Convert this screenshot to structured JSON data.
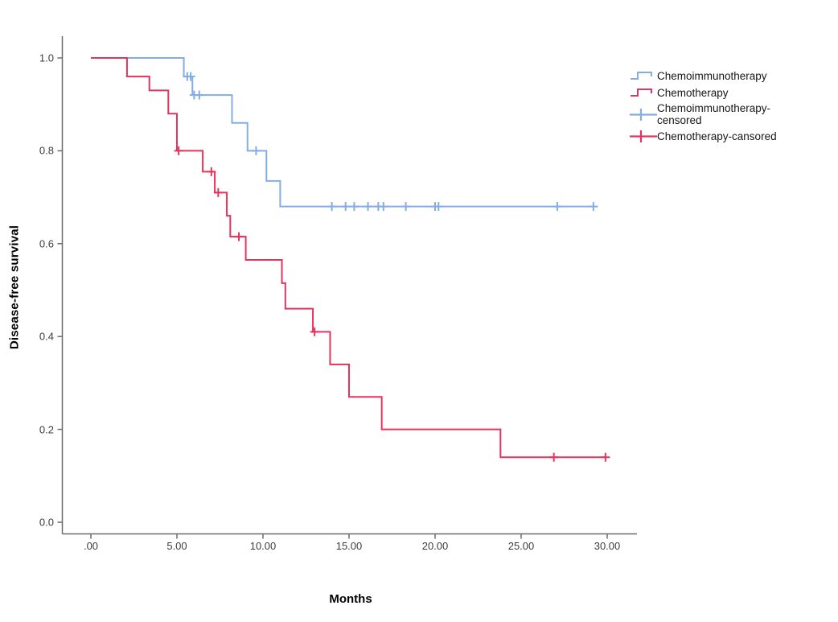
{
  "figure": {
    "background": "#ffffff",
    "ylabel": "Disease-free survival",
    "xlabel": "Months"
  },
  "colors": {
    "chemoimmunotherapy": "#84ADE4",
    "chemotherapy": "#E4345E",
    "axis": "#6b6b6b",
    "tick_text": "#3c3c3c",
    "label_text": "#000000"
  },
  "legend": {
    "items": [
      {
        "id": "chemoimmunotherapy",
        "swatch": "step-line",
        "color_key": "chemoimmunotherapy",
        "label": "Chemoimmunotherapy"
      },
      {
        "id": "chemotherapy",
        "swatch": "step-line",
        "color_key": "chemotherapy",
        "label": "Chemotherapy"
      },
      {
        "id": "chemoimmunotherapy-censored",
        "swatch": "censor-plus",
        "color_key": "chemoimmunotherapy",
        "label": "Chemoimmunotherapy-censored"
      },
      {
        "id": "chemotherapy-censored",
        "swatch": "censor-plus",
        "color_key": "chemotherapy",
        "label": "Chemotherapy-cansored"
      }
    ]
  },
  "chart_data": {
    "type": "line",
    "subtype": "kaplan-meier-step",
    "title": "",
    "xlabel": "Months",
    "ylabel": "Disease-free survival",
    "xlim": [
      0,
      30
    ],
    "ylim": [
      0,
      1.0
    ],
    "grid": false,
    "legend_position": "right",
    "x_ticks": {
      "values": [
        0,
        5,
        10,
        15,
        20,
        25,
        30
      ],
      "labels": [
        ".00",
        "5.00",
        "10.00",
        "15.00",
        "20.00",
        "25.00",
        "30.00"
      ]
    },
    "y_ticks": {
      "values": [
        1.0,
        0.8,
        0.6,
        0.4,
        0.2,
        0.0
      ],
      "labels": [
        "1.0",
        "0.8",
        "0.6",
        "0.4",
        "0.2",
        "0.0"
      ]
    },
    "series": [
      {
        "name": "Chemoimmunotherapy",
        "color_key": "chemoimmunotherapy",
        "steps": [
          [
            0,
            1.0
          ],
          [
            5.4,
            0.96
          ],
          [
            5.9,
            0.92
          ],
          [
            8.2,
            0.86
          ],
          [
            9.1,
            0.8
          ],
          [
            10.2,
            0.735
          ],
          [
            11.0,
            0.68
          ]
        ],
        "end_time": 29.2,
        "censored": [
          [
            5.6,
            0.96
          ],
          [
            5.8,
            0.96
          ],
          [
            6.0,
            0.92
          ],
          [
            6.3,
            0.92
          ],
          [
            9.6,
            0.8
          ],
          [
            14.0,
            0.68
          ],
          [
            14.8,
            0.68
          ],
          [
            15.3,
            0.68
          ],
          [
            16.1,
            0.68
          ],
          [
            16.7,
            0.68
          ],
          [
            17.0,
            0.68
          ],
          [
            18.3,
            0.68
          ],
          [
            20.0,
            0.68
          ],
          [
            20.2,
            0.68
          ],
          [
            27.1,
            0.68
          ],
          [
            29.2,
            0.68
          ]
        ]
      },
      {
        "name": "Chemotherapy",
        "color_key": "chemotherapy",
        "steps": [
          [
            0,
            1.0
          ],
          [
            2.1,
            0.96
          ],
          [
            3.4,
            0.93
          ],
          [
            4.5,
            0.88
          ],
          [
            5.0,
            0.8
          ],
          [
            6.5,
            0.755
          ],
          [
            7.2,
            0.71
          ],
          [
            7.9,
            0.66
          ],
          [
            8.1,
            0.615
          ],
          [
            9.0,
            0.565
          ],
          [
            11.1,
            0.515
          ],
          [
            11.3,
            0.46
          ],
          [
            12.9,
            0.41
          ],
          [
            13.9,
            0.34
          ],
          [
            15.0,
            0.27
          ],
          [
            16.9,
            0.2
          ],
          [
            23.8,
            0.14
          ]
        ],
        "end_time": 29.9,
        "censored": [
          [
            5.1,
            0.8
          ],
          [
            7.0,
            0.755
          ],
          [
            7.4,
            0.71
          ],
          [
            8.6,
            0.615
          ],
          [
            13.0,
            0.41
          ],
          [
            26.9,
            0.14
          ],
          [
            29.9,
            0.14
          ]
        ]
      }
    ]
  }
}
